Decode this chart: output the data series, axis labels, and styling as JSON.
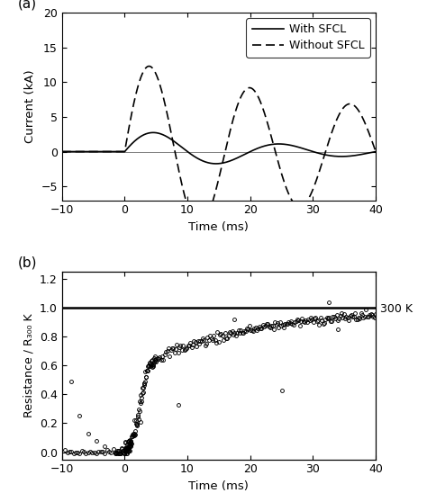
{
  "title_a": "(a)",
  "title_b": "(b)",
  "xlim": [
    -10,
    40
  ],
  "ylim_a": [
    -7,
    20
  ],
  "ylim_b": [
    -0.05,
    1.25
  ],
  "xlabel": "Time (ms)",
  "ylabel_a": "Current (kA)",
  "ylabel_b": "Resistance / R₃₀₀ K",
  "yticks_a": [
    -5,
    0,
    5,
    10,
    15,
    20
  ],
  "yticks_b": [
    0.0,
    0.2,
    0.4,
    0.6,
    0.8,
    1.0,
    1.2
  ],
  "xticks": [
    -10,
    0,
    10,
    20,
    30,
    40
  ],
  "legend_labels": [
    "With SFCL",
    "Without SFCL"
  ],
  "annotation_300k": "300 K",
  "background_color": "#ffffff",
  "line_color": "#000000",
  "sfcl_peak": 3.4,
  "sfcl_period": 20.0,
  "sfcl_decay": 22.0,
  "nosfcl_peak": 13.2,
  "nosfcl_period": 16.0,
  "nosfcl_decay": 55.0
}
